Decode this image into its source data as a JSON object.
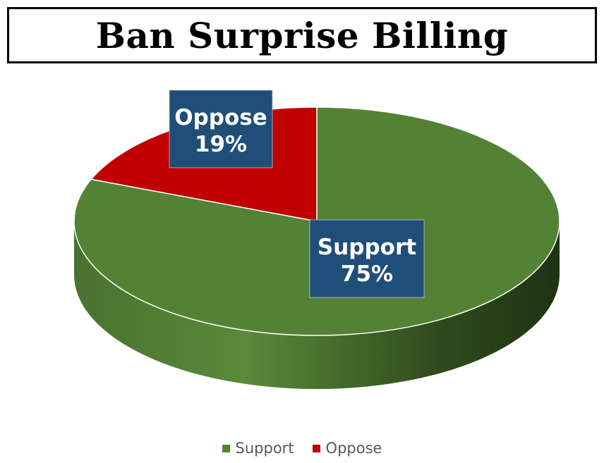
{
  "chart_data": {
    "type": "pie",
    "title": "Ban Surprise Billing",
    "slices": [
      {
        "name": "Support",
        "value": 75,
        "label": "75%",
        "color": "#548235"
      },
      {
        "name": "Oppose",
        "value": 19,
        "label": "19%",
        "color": "#C00000"
      }
    ],
    "label_box_color": "#1F4E79",
    "legend_position": "bottom",
    "style": "3d"
  }
}
